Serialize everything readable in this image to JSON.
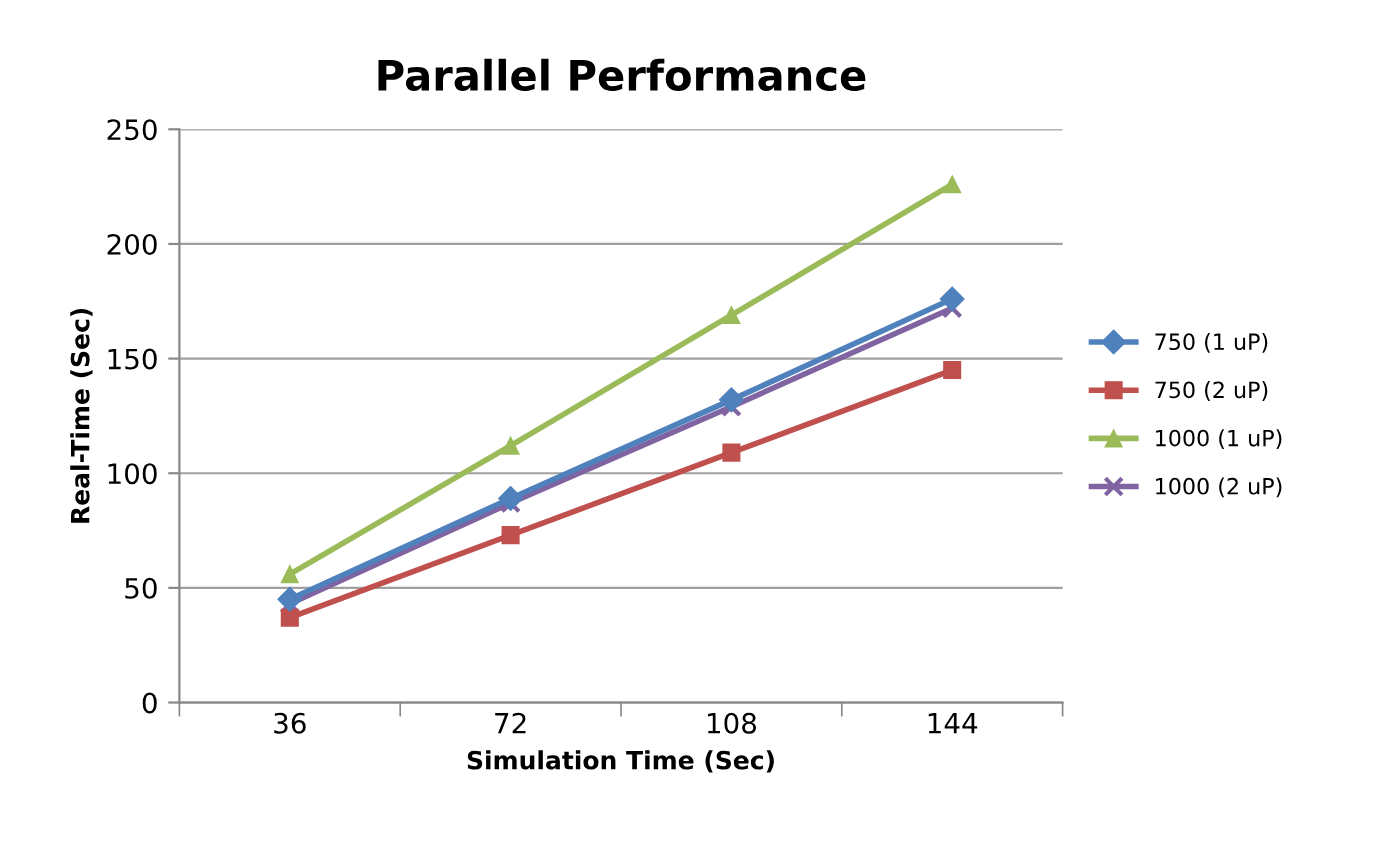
{
  "chart_data": {
    "type": "line",
    "title": "Parallel Performance",
    "xlabel": "Simulation Time (Sec)",
    "ylabel": "Real-Time (Sec)",
    "categories": [
      "36",
      "72",
      "108",
      "144"
    ],
    "series": [
      {
        "name": "750 (1 uP)",
        "color": "#4f81bd",
        "marker": "diamond",
        "values": [
          45,
          89,
          132,
          176
        ]
      },
      {
        "name": "750 (2 uP)",
        "color": "#c0504d",
        "marker": "square",
        "values": [
          37,
          73,
          109,
          145
        ]
      },
      {
        "name": "1000 (1 uP)",
        "color": "#9bbb59",
        "marker": "triangle",
        "values": [
          56,
          112,
          169,
          226
        ]
      },
      {
        "name": "1000 (2 uP)",
        "color": "#8064a2",
        "marker": "cross",
        "values": [
          43,
          87,
          129,
          172
        ]
      }
    ],
    "ylim": [
      0,
      250
    ],
    "yticks": [
      0,
      50,
      100,
      150,
      200,
      250
    ],
    "grid": "y",
    "legend": "right",
    "line_style": "solid"
  }
}
